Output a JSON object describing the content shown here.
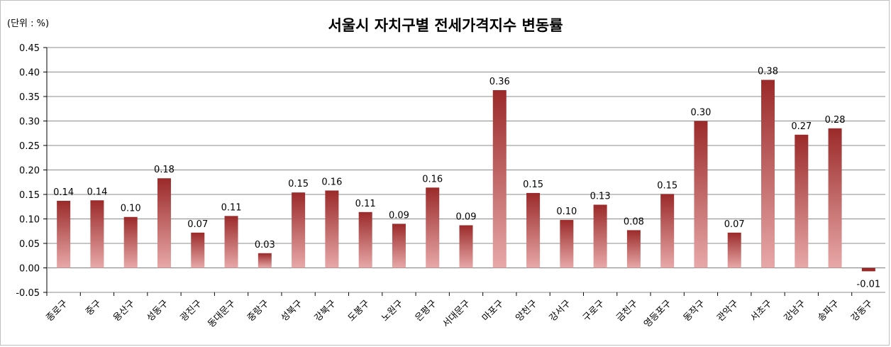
{
  "chart_data": {
    "type": "bar",
    "title": "서울시 자치구별 전세가격지수 변동률",
    "unit_label": "(단위 : %)",
    "categories": [
      "종로구",
      "중구",
      "용산구",
      "성동구",
      "광진구",
      "동대문구",
      "중랑구",
      "성북구",
      "강북구",
      "도봉구",
      "노원구",
      "은평구",
      "서대문구",
      "마포구",
      "양천구",
      "강서구",
      "구로구",
      "금천구",
      "영등포구",
      "동작구",
      "관악구",
      "서초구",
      "강남구",
      "송파구",
      "강동구"
    ],
    "values": [
      0.14,
      0.14,
      0.1,
      0.18,
      0.07,
      0.11,
      0.03,
      0.15,
      0.16,
      0.11,
      0.09,
      0.16,
      0.09,
      0.36,
      0.15,
      0.1,
      0.13,
      0.08,
      0.15,
      0.3,
      0.07,
      0.38,
      0.27,
      0.28,
      -0.01
    ],
    "bar_heights": [
      0.137,
      0.138,
      0.104,
      0.183,
      0.072,
      0.106,
      0.03,
      0.154,
      0.158,
      0.114,
      0.09,
      0.164,
      0.087,
      0.363,
      0.153,
      0.098,
      0.129,
      0.077,
      0.151,
      0.3,
      0.072,
      0.384,
      0.272,
      0.285,
      -0.007
    ],
    "data_labels": [
      "0.14",
      "0.14",
      "0.10",
      "0.18",
      "0.07",
      "0.11",
      "0.03",
      "0.15",
      "0.16",
      "0.11",
      "0.09",
      "0.16",
      "0.09",
      "0.36",
      "0.15",
      "0.10",
      "0.13",
      "0.08",
      "0.15",
      "0.30",
      "0.07",
      "0.38",
      "0.27",
      "0.28",
      "-0.01"
    ],
    "ylim": [
      -0.05,
      0.45
    ],
    "yticks": [
      "0.45",
      "0.40",
      "0.35",
      "0.30",
      "0.25",
      "0.20",
      "0.15",
      "0.10",
      "0.05",
      "0.00",
      "-0.05"
    ],
    "grid": true,
    "bar_color_top": "#9b2a2a",
    "bar_color_bottom": "#e8a8a8"
  }
}
